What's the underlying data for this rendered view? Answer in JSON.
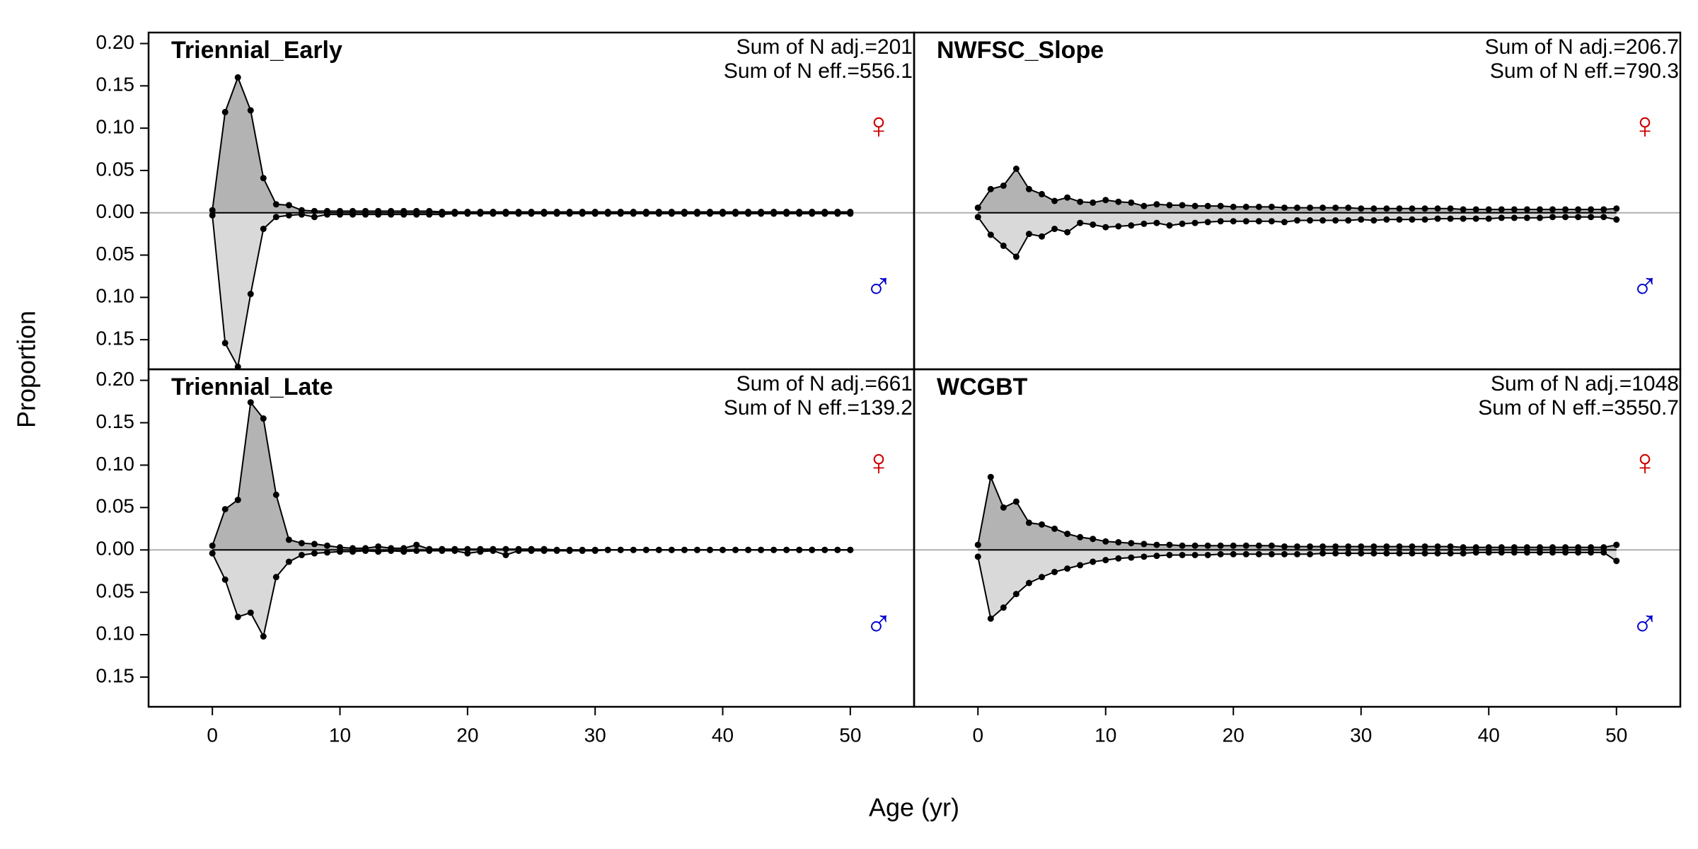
{
  "xlabel": "Age (yr)",
  "ylabel": "Proportion",
  "chart_data": [
    {
      "type": "line",
      "title": "Triennial_Early",
      "annotations": [
        "Sum of N adj.=201",
        "Sum of N eff.=556.1"
      ],
      "x": [
        0,
        1,
        2,
        3,
        4,
        5,
        6,
        7,
        8,
        9,
        10,
        11,
        12,
        13,
        14,
        15,
        16,
        17,
        18,
        19,
        20,
        21,
        22,
        23,
        24,
        25,
        26,
        27,
        28,
        29,
        30,
        31,
        32,
        33,
        34,
        35,
        36,
        37,
        38,
        39,
        40,
        41,
        42,
        43,
        44,
        45,
        46,
        47,
        48,
        49,
        50
      ],
      "xlim": [
        -5,
        55
      ],
      "ylim": [
        -0.185,
        0.213
      ],
      "yticks": [
        {
          "value": 0.2,
          "label": "0.20"
        },
        0.15,
        {
          "value": 0.1,
          "label": "0.10"
        },
        0.05,
        {
          "value": 0,
          "label": "0.00"
        },
        {
          "value": -0.05,
          "label": "0.05"
        },
        {
          "value": -0.1,
          "label": "0.10"
        },
        {
          "value": -0.15,
          "label": "0.15"
        }
      ],
      "series": [
        {
          "name": "♀",
          "color": "#cc0000",
          "fill": "#b3b3b3",
          "values": [
            0.003,
            0.119,
            0.16,
            0.121,
            0.041,
            0.01,
            0.009,
            0.003,
            0.002,
            0.002,
            0.002,
            0.002,
            0.002,
            0.002,
            0.002,
            0.002,
            0.002,
            0.002,
            0.001,
            0.001,
            0.001,
            0.001,
            0.001,
            0.001,
            0.001,
            0.001,
            0.001,
            0.001,
            0.001,
            0.001,
            0.001,
            0.001,
            0.001,
            0.001,
            0.001,
            0.001,
            0.001,
            0.001,
            0.001,
            0.001,
            0.001,
            0.001,
            0.001,
            0.001,
            0.001,
            0.001,
            0.001,
            0.001,
            0.001,
            0.001,
            0.001
          ]
        },
        {
          "name": "♂",
          "color": "#0000cc",
          "fill": "#d9d9d9",
          "values": [
            -0.003,
            -0.154,
            -0.182,
            -0.096,
            -0.019,
            -0.005,
            -0.003,
            -0.002,
            -0.005,
            -0.002,
            -0.002,
            -0.002,
            -0.002,
            -0.002,
            -0.002,
            -0.002,
            -0.002,
            -0.002,
            -0.002,
            -0.001,
            -0.001,
            -0.001,
            -0.001,
            -0.001,
            -0.001,
            -0.001,
            -0.001,
            -0.001,
            -0.001,
            -0.001,
            -0.001,
            -0.001,
            -0.001,
            -0.001,
            -0.001,
            -0.001,
            -0.001,
            -0.001,
            -0.001,
            -0.001,
            -0.001,
            -0.001,
            -0.001,
            -0.001,
            -0.001,
            -0.001,
            -0.001,
            -0.001,
            -0.001,
            -0.001,
            -0.001
          ]
        }
      ]
    },
    {
      "type": "line",
      "title": "NWFSC_Slope",
      "annotations": [
        "Sum of N adj.=206.7",
        "Sum of N eff.=790.3"
      ],
      "x": [
        0,
        1,
        2,
        3,
        4,
        5,
        6,
        7,
        8,
        9,
        10,
        11,
        12,
        13,
        14,
        15,
        16,
        17,
        18,
        19,
        20,
        21,
        22,
        23,
        24,
        25,
        26,
        27,
        28,
        29,
        30,
        31,
        32,
        33,
        34,
        35,
        36,
        37,
        38,
        39,
        40,
        41,
        42,
        43,
        44,
        45,
        46,
        47,
        48,
        49,
        50
      ],
      "xlim": [
        -5,
        55
      ],
      "ylim": [
        -0.185,
        0.213
      ],
      "series": [
        {
          "name": "♀",
          "color": "#cc0000",
          "fill": "#b3b3b3",
          "values": [
            0.006,
            0.028,
            0.032,
            0.052,
            0.028,
            0.022,
            0.014,
            0.018,
            0.013,
            0.012,
            0.015,
            0.013,
            0.012,
            0.008,
            0.01,
            0.009,
            0.009,
            0.008,
            0.008,
            0.008,
            0.007,
            0.007,
            0.007,
            0.007,
            0.006,
            0.006,
            0.006,
            0.006,
            0.006,
            0.006,
            0.005,
            0.005,
            0.005,
            0.005,
            0.005,
            0.005,
            0.005,
            0.005,
            0.004,
            0.004,
            0.004,
            0.004,
            0.004,
            0.004,
            0.004,
            0.004,
            0.004,
            0.004,
            0.004,
            0.004,
            0.005
          ]
        },
        {
          "name": "♂",
          "color": "#0000cc",
          "fill": "#d9d9d9",
          "values": [
            -0.005,
            -0.026,
            -0.039,
            -0.052,
            -0.025,
            -0.028,
            -0.019,
            -0.023,
            -0.012,
            -0.014,
            -0.017,
            -0.016,
            -0.015,
            -0.013,
            -0.012,
            -0.015,
            -0.013,
            -0.012,
            -0.011,
            -0.01,
            -0.01,
            -0.01,
            -0.01,
            -0.01,
            -0.011,
            -0.009,
            -0.009,
            -0.009,
            -0.009,
            -0.009,
            -0.008,
            -0.009,
            -0.008,
            -0.008,
            -0.008,
            -0.008,
            -0.007,
            -0.007,
            -0.007,
            -0.007,
            -0.007,
            -0.006,
            -0.006,
            -0.006,
            -0.006,
            -0.005,
            -0.005,
            -0.005,
            -0.005,
            -0.005,
            -0.008
          ]
        }
      ]
    },
    {
      "type": "line",
      "title": "Triennial_Late",
      "annotations": [
        "Sum of N adj.=661",
        "Sum of N eff.=139.2"
      ],
      "x": [
        0,
        1,
        2,
        3,
        4,
        5,
        6,
        7,
        8,
        9,
        10,
        11,
        12,
        13,
        14,
        15,
        16,
        17,
        18,
        19,
        20,
        21,
        22,
        23,
        24,
        25,
        26,
        27,
        28,
        29,
        30,
        31,
        32,
        33,
        34,
        35,
        36,
        37,
        38,
        39,
        40,
        41,
        42,
        43,
        44,
        45,
        46,
        47,
        48,
        49,
        50
      ],
      "xlim": [
        -5,
        55
      ],
      "ylim": [
        -0.185,
        0.213
      ],
      "yticks": [
        {
          "value": 0.2,
          "label": "0.20"
        },
        0.15,
        {
          "value": 0.1,
          "label": "0.10"
        },
        0.05,
        {
          "value": 0,
          "label": "0.00"
        },
        {
          "value": -0.05,
          "label": "0.05"
        },
        {
          "value": -0.1,
          "label": "0.10"
        },
        {
          "value": -0.15,
          "label": "0.15"
        }
      ],
      "xticks": [
        0,
        10,
        20,
        30,
        40,
        50
      ],
      "series": [
        {
          "name": "♀",
          "color": "#cc0000",
          "fill": "#b3b3b3",
          "values": [
            0.005,
            0.048,
            0.059,
            0.174,
            0.155,
            0.065,
            0.012,
            0.008,
            0.007,
            0.005,
            0.003,
            0.002,
            0.002,
            0.004,
            0.002,
            0.002,
            0.006,
            0.001,
            0.001,
            0.001,
            0.001,
            0.001,
            0.001,
            0.001,
            0.001,
            0.001,
            0.001,
            0,
            0,
            0,
            0,
            0,
            0,
            0,
            0,
            0,
            0,
            0,
            0,
            0,
            0,
            0,
            0,
            0,
            0,
            0,
            0,
            0,
            0,
            0,
            0
          ]
        },
        {
          "name": "♂",
          "color": "#0000cc",
          "fill": "#d9d9d9",
          "values": [
            -0.004,
            -0.035,
            -0.079,
            -0.074,
            -0.102,
            -0.032,
            -0.014,
            -0.006,
            -0.004,
            -0.003,
            -0.002,
            -0.002,
            -0.001,
            -0.002,
            -0.001,
            -0.002,
            -0.001,
            -0.001,
            -0.001,
            -0.001,
            -0.004,
            -0.002,
            -0.001,
            -0.006,
            -0.001,
            -0.001,
            -0.001,
            -0.001,
            -0.001,
            -0.001,
            -0.001,
            0,
            0,
            0,
            0,
            0,
            0,
            0,
            0,
            0,
            0,
            0,
            0,
            0,
            0,
            0,
            0,
            0,
            0,
            0,
            0
          ]
        }
      ]
    },
    {
      "type": "line",
      "title": "WCGBT",
      "annotations": [
        "Sum of N adj.=1048",
        "Sum of N eff.=3550.7"
      ],
      "x": [
        0,
        1,
        2,
        3,
        4,
        5,
        6,
        7,
        8,
        9,
        10,
        11,
        12,
        13,
        14,
        15,
        16,
        17,
        18,
        19,
        20,
        21,
        22,
        23,
        24,
        25,
        26,
        27,
        28,
        29,
        30,
        31,
        32,
        33,
        34,
        35,
        36,
        37,
        38,
        39,
        40,
        41,
        42,
        43,
        44,
        45,
        46,
        47,
        48,
        49,
        50
      ],
      "xlim": [
        -5,
        55
      ],
      "ylim": [
        -0.185,
        0.213
      ],
      "xticks": [
        0,
        10,
        20,
        30,
        40,
        50
      ],
      "series": [
        {
          "name": "♀",
          "color": "#cc0000",
          "fill": "#b3b3b3",
          "values": [
            0.006,
            0.086,
            0.05,
            0.057,
            0.032,
            0.03,
            0.025,
            0.019,
            0.015,
            0.013,
            0.01,
            0.009,
            0.008,
            0.007,
            0.006,
            0.006,
            0.005,
            0.005,
            0.005,
            0.005,
            0.005,
            0.005,
            0.005,
            0.005,
            0.004,
            0.004,
            0.004,
            0.004,
            0.004,
            0.004,
            0.004,
            0.004,
            0.004,
            0.004,
            0.004,
            0.004,
            0.004,
            0.004,
            0.003,
            0.003,
            0.003,
            0.003,
            0.003,
            0.003,
            0.003,
            0.003,
            0.003,
            0.003,
            0.003,
            0.003,
            0.006
          ]
        },
        {
          "name": "♂",
          "color": "#0000cc",
          "fill": "#d9d9d9",
          "values": [
            -0.008,
            -0.081,
            -0.068,
            -0.052,
            -0.039,
            -0.032,
            -0.026,
            -0.022,
            -0.018,
            -0.014,
            -0.012,
            -0.01,
            -0.009,
            -0.008,
            -0.007,
            -0.006,
            -0.006,
            -0.006,
            -0.006,
            -0.005,
            -0.005,
            -0.005,
            -0.005,
            -0.005,
            -0.005,
            -0.005,
            -0.005,
            -0.004,
            -0.004,
            -0.004,
            -0.004,
            -0.004,
            -0.004,
            -0.004,
            -0.004,
            -0.004,
            -0.004,
            -0.004,
            -0.004,
            -0.003,
            -0.003,
            -0.003,
            -0.003,
            -0.003,
            -0.003,
            -0.003,
            -0.003,
            -0.003,
            -0.003,
            -0.003,
            -0.013
          ]
        }
      ]
    }
  ]
}
